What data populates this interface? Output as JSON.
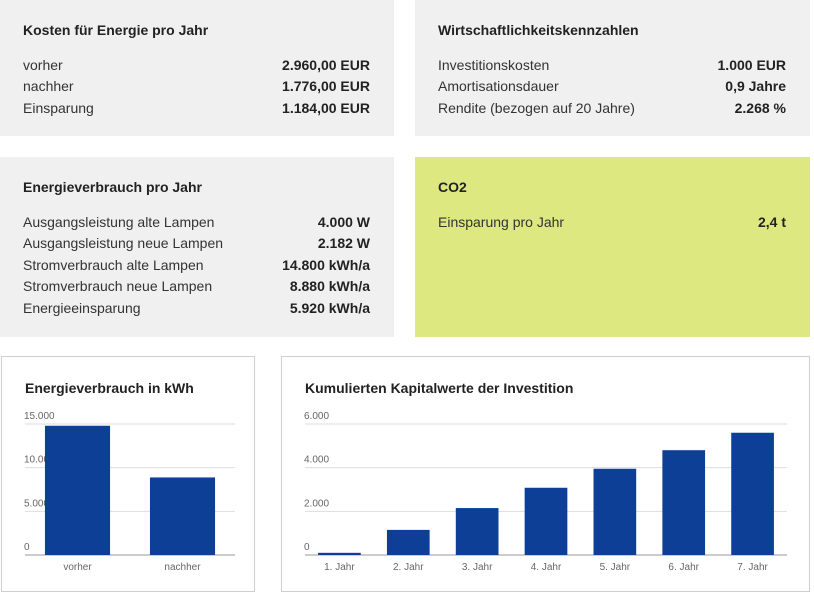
{
  "cards": {
    "kosten": {
      "title": "Kosten für Energie pro Jahr",
      "rows": [
        {
          "label": "vorher",
          "value": "2.960,00 EUR"
        },
        {
          "label": "nachher",
          "value": "1.776,00 EUR"
        },
        {
          "label": "Einsparung",
          "value": "1.184,00 EUR"
        }
      ]
    },
    "wirtschaft": {
      "title": "Wirtschaftlichkeitskennzahlen",
      "rows": [
        {
          "label": "Investitionskosten",
          "value": "1.000 EUR"
        },
        {
          "label": "Amortisationsdauer",
          "value": "0,9 Jahre"
        },
        {
          "label": "Rendite (bezogen auf 20 Jahre)",
          "value": "2.268 %"
        }
      ]
    },
    "energie": {
      "title": "Energieverbrauch pro Jahr",
      "rows": [
        {
          "label": "Ausgangsleistung alte Lampen",
          "value": "4.000 W"
        },
        {
          "label": "Ausgangsleistung neue Lampen",
          "value": "2.182 W"
        },
        {
          "label": "Stromverbrauch alte Lampen",
          "value": "14.800 kWh/a"
        },
        {
          "label": "Stromverbrauch neue Lampen",
          "value": "8.880 kWh/a"
        },
        {
          "label": "Energieeinsparung",
          "value": "5.920 kWh/a"
        }
      ]
    },
    "co2": {
      "title": "CO2",
      "rows": [
        {
          "label": "Einsparung pro Jahr",
          "value": "2,4 t"
        }
      ]
    }
  },
  "colors": {
    "bar": "#0d3f97",
    "card_gray": "#f0f0f0",
    "card_green": "#dde880",
    "grid": "#dddddd",
    "axis_text": "#666666"
  },
  "chart_data": [
    {
      "type": "bar",
      "title": "Energieverbrauch in kWh",
      "categories": [
        "vorher",
        "nachher"
      ],
      "values": [
        14800,
        8880
      ],
      "ylim": [
        0,
        15000
      ],
      "yticks": [
        0,
        5000,
        10000,
        15000
      ],
      "ytick_labels": [
        "0",
        "5.000",
        "10.000",
        "15.000"
      ],
      "xlabel": "",
      "ylabel": "",
      "grid": true,
      "legend": "none"
    },
    {
      "type": "bar",
      "title": "Kumulierten Kapitalwerte der Investition",
      "categories": [
        "1. Jahr",
        "2. Jahr",
        "3. Jahr",
        "4. Jahr",
        "5. Jahr",
        "6. Jahr",
        "7. Jahr"
      ],
      "values": [
        100,
        1150,
        2150,
        3080,
        3950,
        4800,
        5600
      ],
      "ylim": [
        0,
        6000
      ],
      "yticks": [
        0,
        2000,
        4000,
        6000
      ],
      "ytick_labels": [
        "0",
        "2.000",
        "4.000",
        "6.000"
      ],
      "xlabel": "",
      "ylabel": "",
      "grid": true,
      "legend": "none"
    }
  ]
}
